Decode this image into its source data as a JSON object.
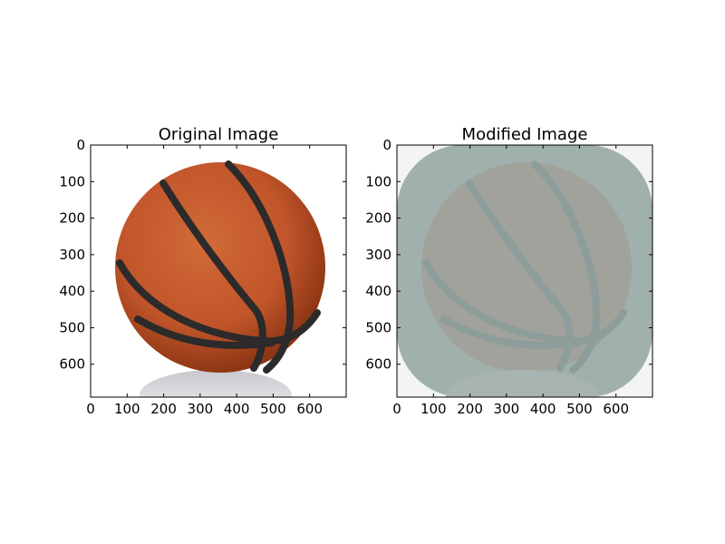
{
  "chart_data": [
    {
      "type": "image",
      "title": "Original Image",
      "xlabel": "",
      "ylabel": "",
      "xlim": [
        0,
        700
      ],
      "ylim": [
        690,
        0
      ],
      "x_ticks": [
        0,
        100,
        200,
        300,
        400,
        500,
        600
      ],
      "y_ticks": [
        0,
        100,
        200,
        300,
        400,
        500,
        600
      ],
      "x_tick_labels": [
        "0",
        "100",
        "200",
        "300",
        "400",
        "500",
        "600"
      ],
      "y_tick_labels": [
        "0",
        "100",
        "200",
        "300",
        "400",
        "500",
        "600"
      ],
      "grid": false,
      "content": "basketball",
      "colors": {
        "ball": "#c4592c",
        "ball_shade": "#8e3614",
        "seam": "#2c2a2a",
        "reflection": "#d9d9dc",
        "background": "#ffffff"
      }
    },
    {
      "type": "image",
      "title": "Modified Image",
      "xlabel": "",
      "ylabel": "",
      "xlim": [
        0,
        700
      ],
      "ylim": [
        690,
        0
      ],
      "x_ticks": [
        0,
        100,
        200,
        300,
        400,
        500,
        600
      ],
      "y_ticks": [
        0,
        100,
        200,
        300,
        400,
        500,
        600
      ],
      "x_tick_labels": [
        "0",
        "100",
        "200",
        "300",
        "400",
        "500",
        "600"
      ],
      "y_tick_labels": [
        "0",
        "100",
        "200",
        "300",
        "400",
        "500",
        "600"
      ],
      "grid": false,
      "content": "basketball with teal-gray overlay",
      "colors": {
        "overlay": "#9fb0ad",
        "ball": "#a1a29b",
        "seam": "#8c9d9a",
        "corner": "#f4f4f4"
      }
    }
  ]
}
